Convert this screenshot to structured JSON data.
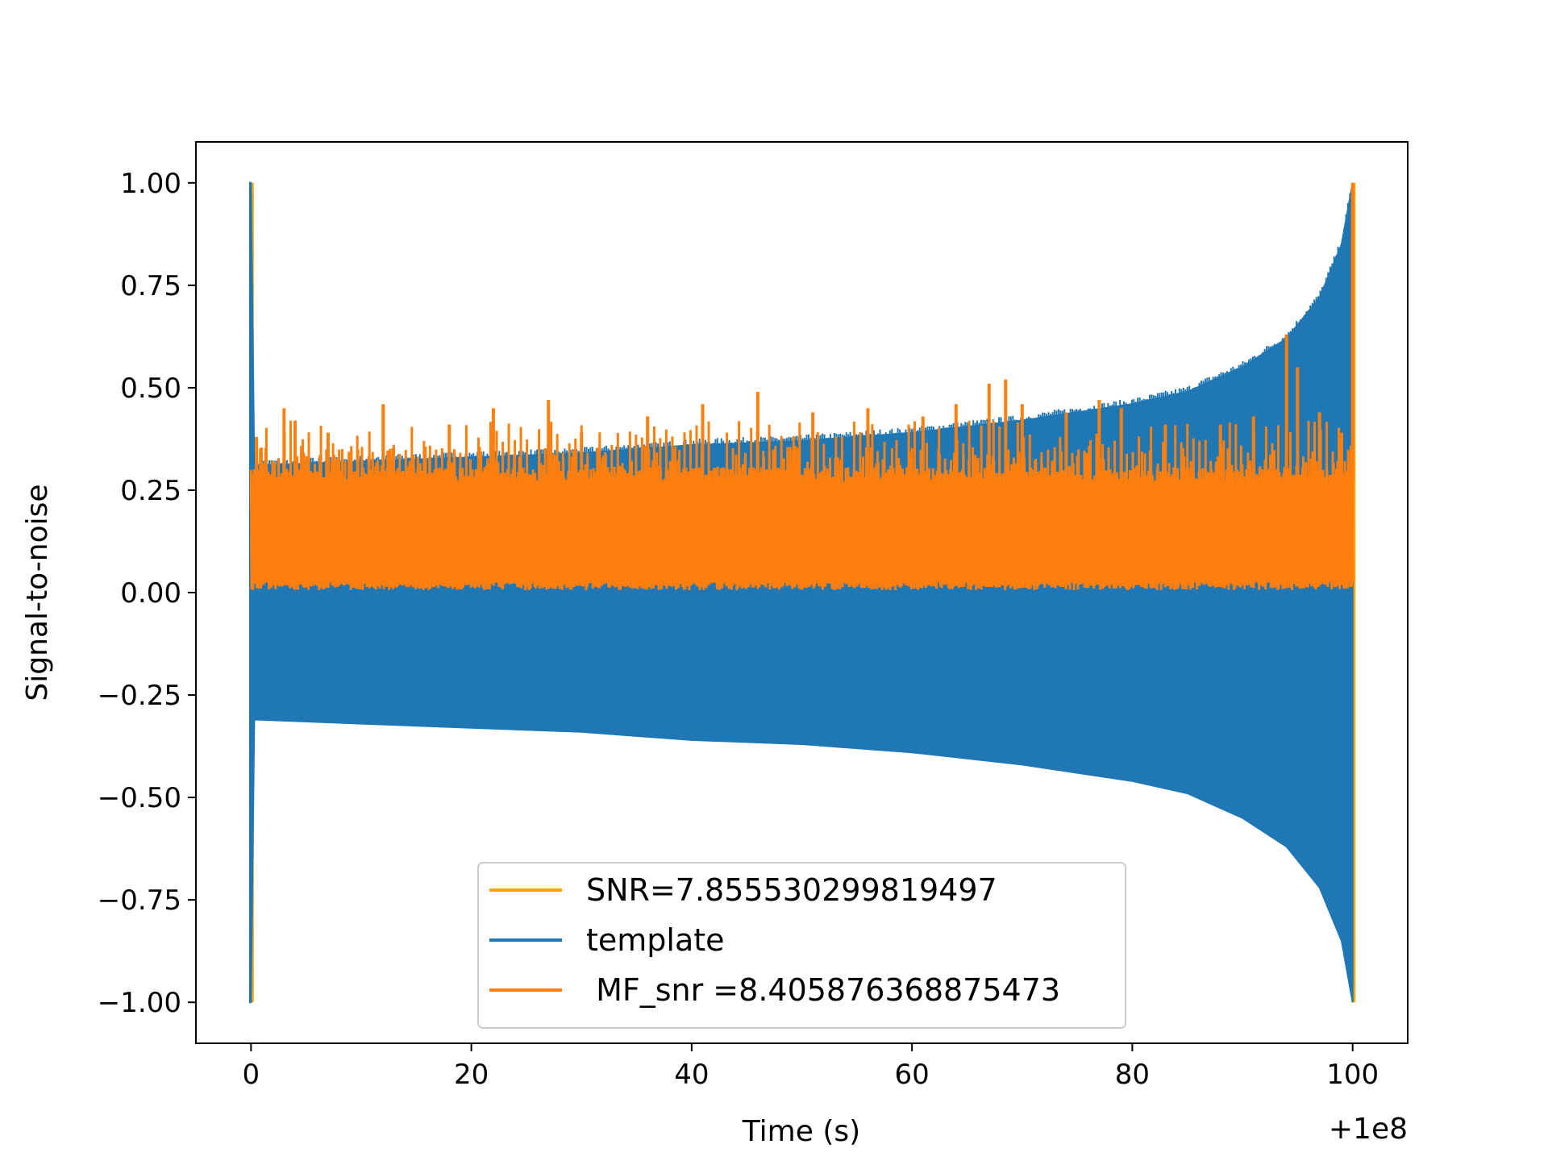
{
  "chart_data": {
    "type": "line",
    "title": "",
    "xlabel": "Time (s)",
    "ylabel": "Signal-to-noise",
    "x_offset_label": "+1e8",
    "xlim": [
      -5,
      105
    ],
    "ylim": [
      -1.1,
      1.1
    ],
    "xticks": [
      0,
      20,
      40,
      60,
      80,
      100
    ],
    "xtick_labels": [
      "0",
      "20",
      "40",
      "60",
      "80",
      "100"
    ],
    "yticks": [
      1.0,
      0.75,
      0.5,
      0.25,
      0.0,
      -0.25,
      -0.5,
      -0.75,
      -1.0
    ],
    "ytick_labels": [
      "1.00",
      "0.75",
      "0.50",
      "0.25",
      "0.00",
      "−0.25",
      "−0.50",
      "−0.75",
      "−1.00"
    ],
    "grid": false,
    "legend_position": "lower-center",
    "series": [
      {
        "name": "SNR=7.855530299819497",
        "color": "#ffa500",
        "kind": "spikes",
        "x": [
          0.0,
          100.0
        ],
        "y_max": [
          1.0,
          1.0
        ],
        "y_min": [
          -1.0,
          -1.0
        ]
      },
      {
        "name": "template",
        "color": "#1f77b4",
        "kind": "envelope",
        "x": [
          -0.1,
          0.0,
          0.3,
          10,
          20,
          30,
          40,
          50,
          60,
          70,
          80,
          85,
          90,
          94,
          97,
          99,
          100.0
        ],
        "upper": [
          1.0,
          1.0,
          0.31,
          0.32,
          0.33,
          0.34,
          0.36,
          0.37,
          0.39,
          0.42,
          0.46,
          0.49,
          0.55,
          0.62,
          0.72,
          0.85,
          1.0
        ],
        "lower": [
          -1.0,
          -1.0,
          -0.31,
          -0.32,
          -0.33,
          -0.34,
          -0.36,
          -0.37,
          -0.39,
          -0.42,
          -0.46,
          -0.49,
          -0.55,
          -0.62,
          -0.72,
          -0.85,
          -1.0
        ]
      },
      {
        "name": " MF_snr =8.405876368875473",
        "color": "#ff7f0e",
        "kind": "noise",
        "x_range": [
          0.0,
          100.0
        ],
        "base_low": 0.02,
        "base_high": 0.27,
        "band_top": 0.36,
        "peak_x": [
          0.5,
          3,
          4,
          7,
          12,
          18,
          22,
          27,
          30,
          36,
          41,
          46,
          51,
          56,
          61,
          64,
          67,
          68.5,
          70,
          74,
          77,
          79,
          83,
          88,
          91,
          94,
          95,
          97,
          99,
          100
        ],
        "peak_y": [
          0.38,
          0.45,
          0.42,
          0.39,
          0.46,
          0.41,
          0.45,
          0.47,
          0.39,
          0.43,
          0.46,
          0.49,
          0.44,
          0.45,
          0.43,
          0.46,
          0.51,
          0.52,
          0.46,
          0.44,
          0.47,
          0.45,
          0.41,
          0.41,
          0.43,
          0.63,
          0.55,
          0.44,
          0.39,
          1.0
        ]
      }
    ]
  }
}
